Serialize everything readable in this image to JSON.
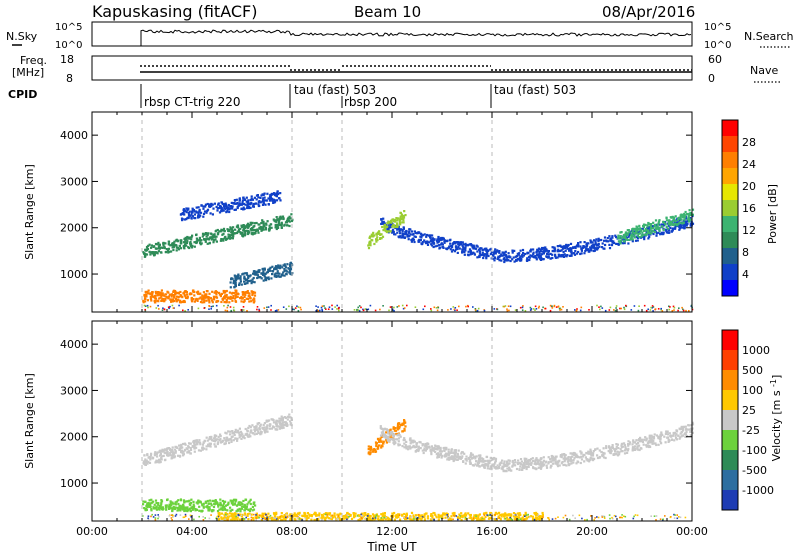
{
  "header": {
    "station": "Kapuskasing (fitACF)",
    "beam": "Beam 10",
    "date": "08/Apr/2016"
  },
  "panels": {
    "nsky": {
      "label": "N.Sky",
      "left_ticks": [
        "10^5",
        "10^0"
      ],
      "right_ticks": [
        "10^5",
        "10^0"
      ],
      "right_label": "N.Search"
    },
    "freq": {
      "label_line1": "Freq.",
      "label_line2": "[MHz]",
      "left_ticks": [
        "18",
        "8"
      ],
      "right_ticks": [
        "60",
        "0"
      ],
      "right_label": "Nave"
    },
    "cpid": {
      "label": "CPID",
      "segments": [
        {
          "name": "rbsp CT-trig 220",
          "start_hour": 2
        },
        {
          "name": "tau (fast) 503",
          "start_hour": 8
        },
        {
          "name": "rbsp 200",
          "start_hour": 10
        },
        {
          "name": "tau (fast) 503",
          "start_hour": 16
        }
      ]
    }
  },
  "colorbars": {
    "power": {
      "label": "Power [dB]",
      "ticks": [
        "28",
        "24",
        "20",
        "16",
        "12",
        "8",
        "4"
      ],
      "colors": [
        "#0000ff",
        "#1040c8",
        "#20608c",
        "#2e8b57",
        "#3cb371",
        "#9acd32",
        "#e6e600",
        "#ffa500",
        "#ff7f00",
        "#ff4500",
        "#ff0000"
      ]
    },
    "velocity": {
      "label": "Velocity [m s^-1]",
      "ticks": [
        "1000",
        "500",
        "100",
        "25",
        "-25",
        "-100",
        "-500",
        "-1000"
      ],
      "colors": [
        "#1e3cb4",
        "#2d6ea0",
        "#2e8b57",
        "#6cd23c",
        "#c8c8c8",
        "#ffc800",
        "#ff8c00",
        "#ff4000",
        "#ff0000"
      ]
    }
  },
  "chart_data": [
    {
      "type": "heatmap",
      "panel": "power",
      "ylabel": "Slant Range [km]",
      "xlim": [
        0,
        24
      ],
      "ylim": [
        180,
        4500
      ],
      "yticks": [
        1000,
        2000,
        3000,
        4000
      ],
      "xticks": [
        "00:00",
        "04:00",
        "08:00",
        "12:00",
        "16:00",
        "20:00",
        "00:00"
      ],
      "xlabel": "Time UT",
      "bands": [
        {
          "name": "morning-lower",
          "t0": 2.0,
          "t1": 8.0,
          "r_start": 1500,
          "r_end": 2200,
          "color": "#2e8b57"
        },
        {
          "name": "morning-upper",
          "t0": 3.5,
          "t1": 7.5,
          "r_start": 2300,
          "r_end": 2700,
          "color": "#1040c8"
        },
        {
          "name": "near-range-low",
          "t0": 2.0,
          "t1": 6.5,
          "r_start": 540,
          "r_end": 540,
          "color": "#ff7f00"
        },
        {
          "name": "mid-low-band",
          "t0": 5.5,
          "t1": 8.0,
          "r_start": 850,
          "r_end": 1150,
          "color": "#20608c"
        },
        {
          "name": "evening-arc",
          "t0": 11.5,
          "t1": 24.0,
          "r_start": 2200,
          "r_end": 2200,
          "r_min": 1400,
          "r_min_time": 16.5,
          "color": "#1040c8"
        },
        {
          "name": "evening-strong",
          "t0": 21.0,
          "t1": 24.0,
          "r_start": 1800,
          "r_end": 2300,
          "color": "#3cb371"
        },
        {
          "name": "noon-patch",
          "t0": 11.0,
          "t1": 12.5,
          "r_start": 1700,
          "r_end": 2300,
          "color": "#9acd32"
        }
      ]
    },
    {
      "type": "heatmap",
      "panel": "velocity",
      "ylabel": "Slant Range [km]",
      "xlim": [
        0,
        24
      ],
      "ylim": [
        180,
        4500
      ],
      "yticks": [
        1000,
        2000,
        3000,
        4000
      ],
      "xticks": [
        "00:00",
        "04:00",
        "08:00",
        "12:00",
        "16:00",
        "20:00",
        "00:00"
      ],
      "xlabel": "Time UT",
      "bands": [
        {
          "name": "morning-gs",
          "t0": 2.0,
          "t1": 8.0,
          "r_start": 1500,
          "r_end": 2400,
          "color": "#c8c8c8"
        },
        {
          "name": "morning-green",
          "t0": 2.0,
          "t1": 6.5,
          "r_start": 540,
          "r_end": 540,
          "color": "#6cd23c"
        },
        {
          "name": "near-yellow",
          "t0": 5.0,
          "t1": 18.0,
          "r_start": 250,
          "r_end": 250,
          "color": "#ffc800"
        },
        {
          "name": "noon-orange",
          "t0": 11.0,
          "t1": 12.5,
          "r_start": 1700,
          "r_end": 2300,
          "color": "#ff8c00"
        },
        {
          "name": "evening-gs",
          "t0": 11.5,
          "t1": 24.0,
          "r_start": 2200,
          "r_end": 2200,
          "r_min": 1400,
          "r_min_time": 16.5,
          "color": "#c8c8c8"
        }
      ]
    }
  ]
}
